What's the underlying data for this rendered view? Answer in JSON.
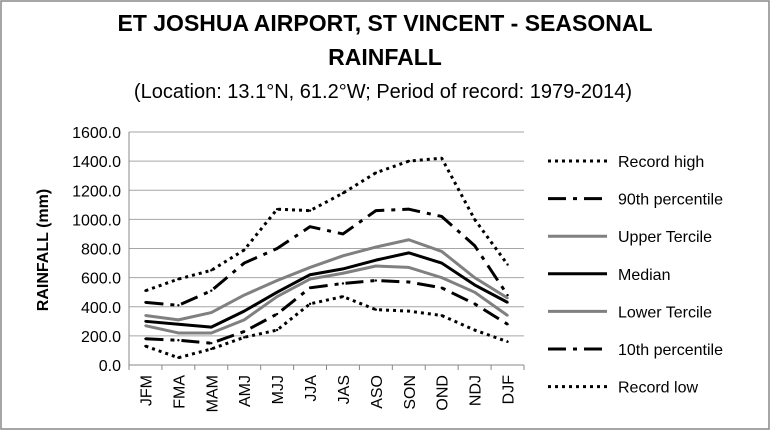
{
  "chart_data": {
    "type": "line",
    "title_lines": [
      "ET JOSHUA AIRPORT, ST VINCENT - SEASONAL",
      "RAINFALL"
    ],
    "subtitle": "(Location: 13.1°N, 61.2°W; Period of record: 1979-2014)",
    "ylabel": "RAINFALL (mm)",
    "ylim": [
      0,
      1600
    ],
    "yticks": [
      "0.0",
      "200.0",
      "400.0",
      "600.0",
      "800.0",
      "1000.0",
      "1200.0",
      "1400.0",
      "1600.0"
    ],
    "grid": true,
    "legend_position": "right",
    "categories": [
      "JFM",
      "FMA",
      "MAM",
      "AMJ",
      "MJJ",
      "JJA",
      "JAS",
      "ASO",
      "SON",
      "OND",
      "NDJ",
      "DJF"
    ],
    "series": [
      {
        "name": "Record high",
        "style": "dotted",
        "color": "#000000",
        "values": [
          510,
          590,
          650,
          790,
          1070,
          1060,
          1180,
          1320,
          1400,
          1420,
          1000,
          690
        ]
      },
      {
        "name": "90th percentile",
        "style": "dashdot",
        "color": "#000000",
        "values": [
          430,
          410,
          510,
          700,
          800,
          950,
          900,
          1060,
          1070,
          1020,
          820,
          480
        ]
      },
      {
        "name": "Upper Tercile",
        "style": "solid",
        "color": "#808080",
        "values": [
          340,
          310,
          360,
          480,
          580,
          670,
          750,
          810,
          860,
          780,
          600,
          460
        ]
      },
      {
        "name": "Median",
        "style": "solid",
        "color": "#000000",
        "values": [
          300,
          280,
          260,
          370,
          500,
          620,
          660,
          720,
          770,
          700,
          550,
          430
        ]
      },
      {
        "name": "Lower Tercile",
        "style": "solid",
        "color": "#808080",
        "values": [
          270,
          220,
          220,
          310,
          470,
          590,
          630,
          680,
          670,
          600,
          500,
          340
        ]
      },
      {
        "name": "10th percentile",
        "style": "dashdot",
        "color": "#000000",
        "values": [
          180,
          170,
          150,
          230,
          350,
          530,
          560,
          580,
          570,
          530,
          420,
          280
        ]
      },
      {
        "name": "Record low",
        "style": "dotted",
        "color": "#000000",
        "values": [
          130,
          50,
          110,
          190,
          240,
          420,
          470,
          380,
          370,
          340,
          240,
          160
        ]
      }
    ]
  }
}
